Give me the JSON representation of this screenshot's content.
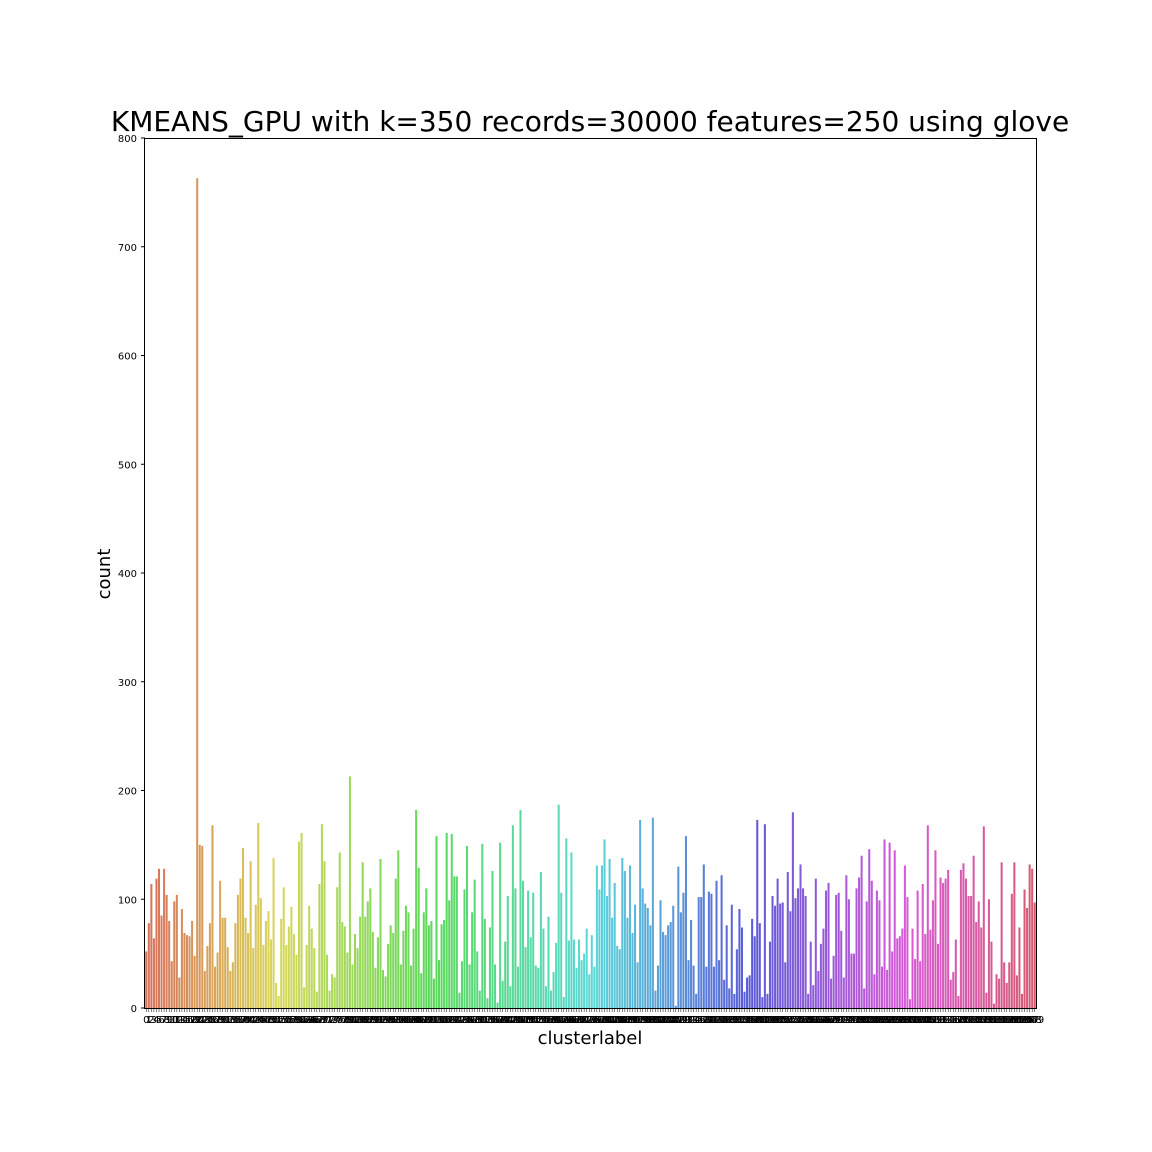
{
  "chart_data": {
    "type": "bar",
    "title": "KMEANS_GPU with k=350 records=30000 features=250 using glove",
    "xlabel": "clusterlabel",
    "ylabel": "count",
    "ylim": [
      0,
      800
    ],
    "yticks": [
      0,
      100,
      200,
      300,
      400,
      500,
      600,
      700,
      800
    ],
    "grid": false,
    "legend": "none",
    "categories_range": [
      0,
      349
    ],
    "values": [
      52,
      78,
      114,
      64,
      119,
      128,
      85,
      128,
      104,
      80,
      43,
      98,
      104,
      28,
      91,
      69,
      67,
      66,
      80,
      48,
      763,
      150,
      149,
      34,
      57,
      78,
      168,
      38,
      51,
      117,
      83,
      83,
      56,
      34,
      42,
      78,
      104,
      119,
      147,
      83,
      69,
      135,
      55,
      95,
      170,
      101,
      58,
      80,
      89,
      63,
      138,
      23,
      11,
      82,
      111,
      58,
      75,
      93,
      68,
      49,
      153,
      161,
      19,
      58,
      94,
      73,
      55,
      15,
      114,
      169,
      135,
      49,
      16,
      31,
      28,
      111,
      143,
      79,
      75,
      51,
      213,
      40,
      68,
      55,
      84,
      134,
      84,
      98,
      110,
      70,
      37,
      65,
      137,
      35,
      29,
      59,
      76,
      69,
      119,
      145,
      40,
      71,
      94,
      88,
      39,
      73,
      182,
      129,
      32,
      88,
      110,
      76,
      80,
      27,
      158,
      44,
      77,
      81,
      161,
      99,
      160,
      121,
      121,
      14,
      43,
      109,
      149,
      40,
      88,
      118,
      52,
      16,
      151,
      82,
      9,
      74,
      126,
      40,
      5,
      152,
      25,
      61,
      103,
      20,
      168,
      110,
      38,
      182,
      117,
      56,
      108,
      65,
      106,
      39,
      37,
      125,
      73,
      20,
      84,
      16,
      33,
      60,
      187,
      106,
      10,
      156,
      62,
      143,
      63,
      37,
      63,
      44,
      50,
      73,
      31,
      67,
      38,
      131,
      109,
      131,
      155,
      103,
      137,
      83,
      115,
      57,
      54,
      138,
      126,
      83,
      131,
      69,
      95,
      42,
      173,
      110,
      96,
      92,
      76,
      175,
      16,
      39,
      99,
      70,
      67,
      76,
      79,
      94,
      2,
      130,
      88,
      106,
      158,
      44,
      81,
      39,
      13,
      102,
      102,
      132,
      38,
      107,
      105,
      38,
      117,
      44,
      122,
      26,
      76,
      18,
      95,
      13,
      54,
      91,
      74,
      15,
      28,
      30,
      82,
      66,
      173,
      78,
      10,
      169,
      13,
      61,
      103,
      94,
      119,
      96,
      97,
      42,
      125,
      89,
      180,
      101,
      110,
      132,
      110,
      103,
      13,
      61,
      21,
      119,
      34,
      59,
      73,
      108,
      115,
      27,
      48,
      104,
      106,
      71,
      28,
      122,
      100,
      50,
      50,
      110,
      120,
      140,
      18,
      98,
      146,
      117,
      31,
      108,
      99,
      38,
      155,
      35,
      152,
      52,
      145,
      64,
      66,
      73,
      131,
      102,
      8,
      73,
      45,
      108,
      43,
      114,
      68,
      168,
      72,
      99,
      145,
      59,
      120,
      115,
      119,
      127,
      26,
      33,
      63,
      11,
      127,
      133,
      119,
      103,
      103,
      140,
      79,
      98,
      74,
      167,
      14,
      100,
      61,
      4,
      31,
      27,
      134,
      42,
      23,
      42,
      105,
      134,
      30,
      74,
      13,
      109,
      92,
      132,
      128,
      97
    ]
  }
}
